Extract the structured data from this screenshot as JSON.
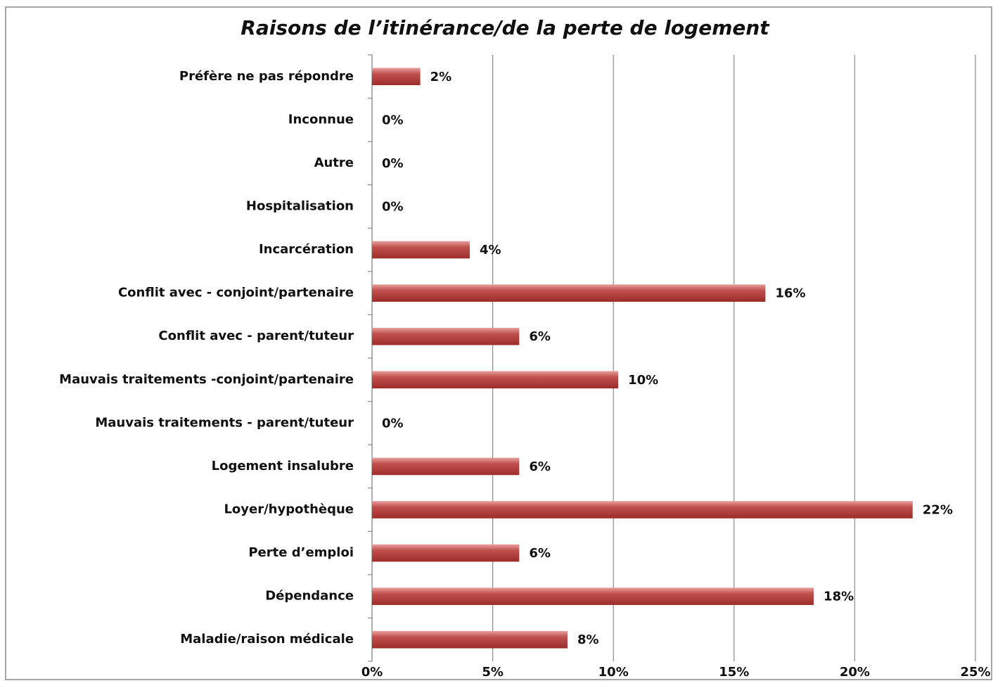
{
  "chart_data": {
    "type": "barh",
    "title": "Raisons de l’itinérance/de la perte de logement",
    "categories": [
      "Préfère ne pas répondre",
      "Inconnue",
      "Autre",
      "Hospitalisation",
      "Incarcération",
      "Conflit avec - conjoint/partenaire",
      "Conflit avec - parent/tuteur",
      "Mauvais traitements -conjoint/partenaire",
      "Mauvais traitements - parent/tuteur",
      "Logement insalubre",
      "Loyer/hypothèque",
      "Perte d’emploi",
      "Dépendance",
      "Maladie/raison médicale"
    ],
    "values": [
      2,
      0,
      0,
      0,
      4.05,
      16.3,
      6.1,
      10.2,
      0,
      6.1,
      22.4,
      6.1,
      18.3,
      8.1
    ],
    "value_labels": [
      "2%",
      "0%",
      "0%",
      "0%",
      "4%",
      "16%",
      "6%",
      "10%",
      "0%",
      "6%",
      "22%",
      "6%",
      "18%",
      "8%"
    ],
    "color": "#c0504d",
    "xlim": [
      0,
      25
    ],
    "xticks": [
      {
        "value": 0,
        "label": "0%"
      },
      {
        "value": 5,
        "label": "5%"
      },
      {
        "value": 10,
        "label": "10%"
      },
      {
        "value": 15,
        "label": "15%"
      },
      {
        "value": 20,
        "label": "20%"
      },
      {
        "value": 25,
        "label": "25%"
      }
    ],
    "grid": true
  }
}
